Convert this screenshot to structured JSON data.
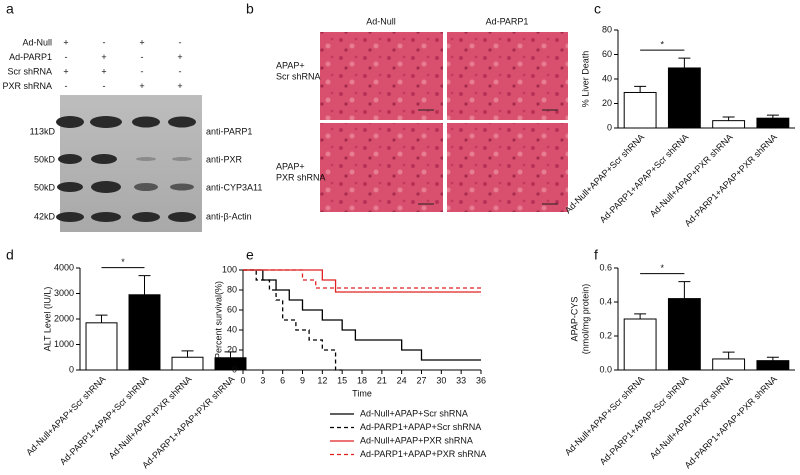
{
  "panel_a": {
    "letter": "a",
    "conditions": [
      {
        "name": "Ad-Null",
        "signs": [
          "+",
          "-",
          "+",
          "-"
        ]
      },
      {
        "name": "Ad-PARP1",
        "signs": [
          "-",
          "+",
          "-",
          "+"
        ]
      },
      {
        "name": "Scr shRNA",
        "signs": [
          "+",
          "+",
          "-",
          "-"
        ]
      },
      {
        "name": "PXR shRNA",
        "signs": [
          "-",
          "-",
          "+",
          "+"
        ]
      }
    ],
    "blots": [
      {
        "size": "113kD",
        "antibody": "anti-PARP1"
      },
      {
        "size": "50kD",
        "antibody": "anti-PXR"
      },
      {
        "size": "50kD",
        "antibody": "anti-CYP3A11"
      },
      {
        "size": "42kD",
        "antibody": "anti-β-Actin"
      }
    ]
  },
  "panel_b": {
    "letter": "b",
    "columns": [
      "Ad-Null",
      "Ad-PARP1"
    ],
    "rows": [
      [
        "APAP+",
        "Scr shRNA"
      ],
      [
        "APAP+",
        "PXR shRNA"
      ]
    ]
  },
  "chart_data": [
    {
      "type": "bar",
      "panel": "c",
      "ylabel": [
        "% Liver Death"
      ],
      "categories": [
        "Ad-Null+APAP+Scr shRNA",
        "Ad-PARP1+APAP+Scr shRNA",
        "Ad-Null+APAP+PXR shRNA",
        "Ad-PARP1+APAP+PXR shRNA"
      ],
      "values": [
        29,
        49,
        6,
        8
      ],
      "errors": [
        5,
        8,
        3,
        2.5
      ],
      "colors": [
        "#ffffff",
        "#000000",
        "#ffffff",
        "#000000"
      ],
      "ylim": [
        0,
        80
      ],
      "yticks": [
        0,
        20,
        40,
        60,
        80
      ],
      "annotation": "*"
    },
    {
      "type": "bar",
      "panel": "d",
      "ylabel": [
        "ALT Level (IU/L)"
      ],
      "categories": [
        "Ad-Null+APAP+Scr shRNA",
        "Ad-PARP1+APAP+Scr shRNA",
        "Ad-Null+APAP+PXR shRNA",
        "Ad-PARP1+APAP+PXR shRNA"
      ],
      "values": [
        1850,
        2950,
        500,
        480
      ],
      "errors": [
        300,
        750,
        250,
        230
      ],
      "colors": [
        "#ffffff",
        "#000000",
        "#ffffff",
        "#000000"
      ],
      "ylim": [
        0,
        4000
      ],
      "yticks": [
        0,
        1000,
        2000,
        3000,
        4000
      ],
      "annotation": "*"
    },
    {
      "type": "line",
      "panel": "e",
      "ylabel": "Percent survival(%)",
      "xlabel": "Time",
      "xlim": [
        0,
        36
      ],
      "xticks": [
        0,
        3,
        6,
        9,
        12,
        15,
        18,
        21,
        24,
        27,
        30,
        33,
        36
      ],
      "ylim": [
        0,
        100
      ],
      "yticks": [
        0,
        20,
        40,
        60,
        80,
        100
      ],
      "series": [
        {
          "name": "Ad-Null+APAP+Scr shRNA",
          "color": "#000000",
          "linestyle": "solid",
          "x": [
            0,
            3,
            3,
            5,
            5,
            7,
            7,
            9,
            9,
            12,
            12,
            15,
            15,
            17,
            17,
            24,
            24,
            27,
            27,
            36
          ],
          "values": [
            100,
            100,
            90,
            90,
            80,
            80,
            70,
            70,
            60,
            60,
            50,
            50,
            40,
            40,
            30,
            30,
            20,
            20,
            10,
            10
          ]
        },
        {
          "name": "Ad-PARP1+APAP+Scr shRNA",
          "color": "#000000",
          "linestyle": "dashed",
          "x": [
            0,
            2,
            2,
            4,
            4,
            5,
            5,
            6,
            6,
            8,
            8,
            10,
            10,
            12,
            12,
            14,
            14,
            15
          ],
          "values": [
            100,
            100,
            90,
            90,
            80,
            80,
            70,
            70,
            50,
            50,
            40,
            40,
            30,
            30,
            20,
            20,
            0,
            0
          ]
        },
        {
          "name": "Ad-Null+APAP+PXR shRNA",
          "color": "#e02020",
          "linestyle": "solid",
          "x": [
            0,
            12,
            12,
            14,
            14,
            36
          ],
          "values": [
            100,
            100,
            90,
            90,
            78,
            78
          ]
        },
        {
          "name": "Ad-PARP1+APAP+PXR shRNA",
          "color": "#e02020",
          "linestyle": "dashed",
          "x": [
            0,
            9,
            9,
            11,
            11,
            36
          ],
          "values": [
            100,
            100,
            90,
            90,
            82,
            82
          ]
        }
      ]
    },
    {
      "type": "bar",
      "panel": "f",
      "ylabel": [
        "APAP-CYS",
        "(nmol/mg protein)"
      ],
      "categories": [
        "Ad-Null+APAP+Scr shRNA",
        "Ad-PARP1+APAP+Scr shRNA",
        "Ad-Null+APAP+PXR shRNA",
        "Ad-PARP1+APAP+PXR shRNA"
      ],
      "values": [
        0.3,
        0.42,
        0.065,
        0.055
      ],
      "errors": [
        0.03,
        0.1,
        0.04,
        0.02
      ],
      "colors": [
        "#ffffff",
        "#000000",
        "#ffffff",
        "#000000"
      ],
      "ylim": [
        0,
        0.6
      ],
      "yticks": [
        {
          "value": 0,
          "label": "0.0"
        },
        0.2,
        0.4,
        0.6
      ],
      "annotation": "*"
    }
  ]
}
